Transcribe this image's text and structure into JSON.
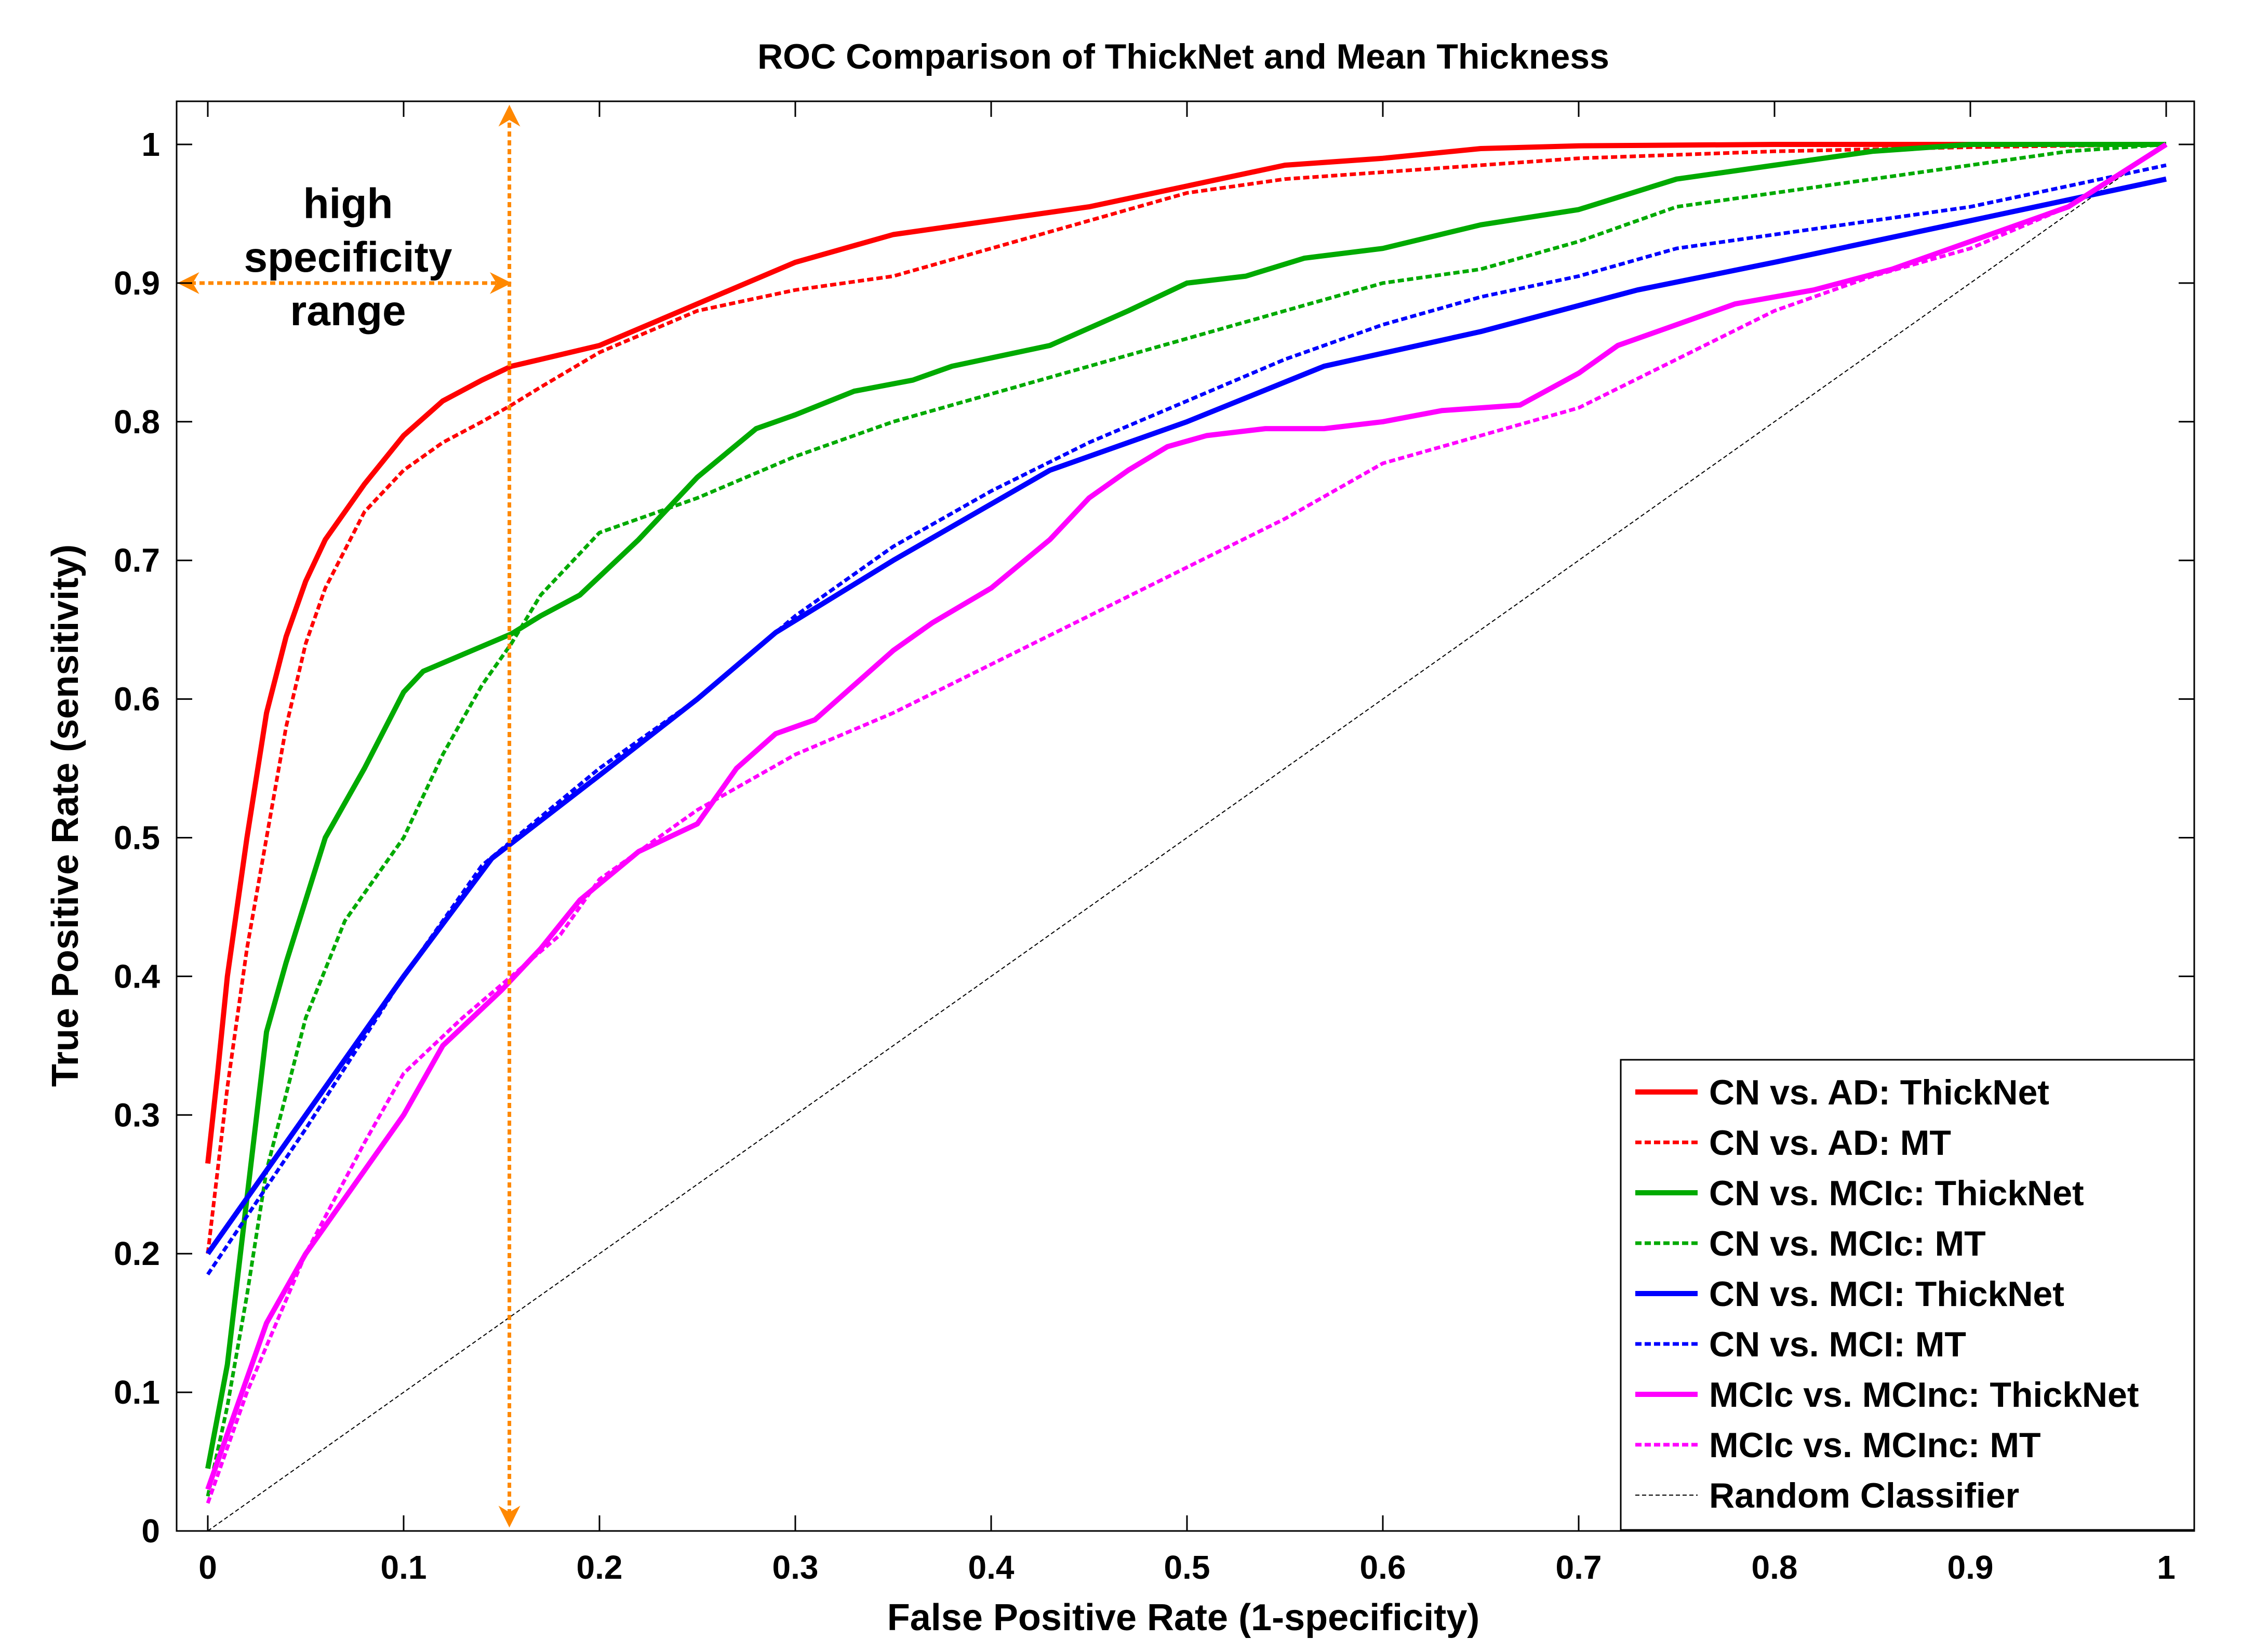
{
  "chart_data": {
    "type": "line",
    "title": "ROC Comparison of ThickNet and Mean Thickness",
    "xlabel": "False Positive Rate (1-specificity)",
    "ylabel": "True Positive Rate (sensitivity)",
    "xlim": [
      0,
      1
    ],
    "ylim": [
      0,
      1
    ],
    "xticks": [
      "0",
      "0.1",
      "0.2",
      "0.3",
      "0.4",
      "0.5",
      "0.6",
      "0.7",
      "0.8",
      "0.9",
      "1"
    ],
    "yticks": [
      "0",
      "0.1",
      "0.2",
      "0.3",
      "0.4",
      "0.5",
      "0.6",
      "0.7",
      "0.8",
      "0.9",
      "1"
    ],
    "grid": false,
    "legend_position": "bottom-right",
    "annotation": {
      "lines": [
        "high",
        "specificity",
        "range"
      ],
      "x_value": 0.154,
      "y_value": 0.9,
      "color": "#ff8800"
    },
    "series": [
      {
        "name": "CN vs. AD: ThickNet",
        "color": "#ff0000",
        "style": "solid",
        "x": [
          0,
          0.005,
          0.01,
          0.02,
          0.03,
          0.04,
          0.05,
          0.06,
          0.08,
          0.1,
          0.12,
          0.14,
          0.155,
          0.17,
          0.2,
          0.25,
          0.3,
          0.35,
          0.4,
          0.45,
          0.5,
          0.55,
          0.6,
          0.65,
          0.7,
          0.8,
          0.9,
          1.0
        ],
        "y": [
          0.265,
          0.33,
          0.4,
          0.5,
          0.59,
          0.645,
          0.685,
          0.715,
          0.755,
          0.79,
          0.815,
          0.83,
          0.84,
          0.845,
          0.855,
          0.885,
          0.915,
          0.935,
          0.945,
          0.955,
          0.97,
          0.985,
          0.99,
          0.997,
          0.999,
          1.0,
          1.0,
          1.0
        ]
      },
      {
        "name": "CN vs. AD: MT",
        "color": "#ff0000",
        "style": "dashed",
        "x": [
          0,
          0.005,
          0.01,
          0.02,
          0.03,
          0.04,
          0.05,
          0.06,
          0.08,
          0.1,
          0.12,
          0.14,
          0.155,
          0.17,
          0.2,
          0.25,
          0.3,
          0.35,
          0.4,
          0.45,
          0.5,
          0.55,
          0.6,
          0.65,
          0.7,
          0.8,
          0.9,
          1.0
        ],
        "y": [
          0.2,
          0.26,
          0.32,
          0.42,
          0.5,
          0.58,
          0.64,
          0.68,
          0.735,
          0.765,
          0.785,
          0.8,
          0.812,
          0.825,
          0.85,
          0.88,
          0.895,
          0.905,
          0.925,
          0.945,
          0.965,
          0.975,
          0.98,
          0.985,
          0.99,
          0.995,
          0.998,
          1.0
        ]
      },
      {
        "name": "CN vs. MCIc: ThickNet",
        "color": "#00aa00",
        "style": "solid",
        "x": [
          0,
          0.01,
          0.02,
          0.03,
          0.04,
          0.06,
          0.08,
          0.1,
          0.11,
          0.13,
          0.155,
          0.17,
          0.19,
          0.22,
          0.25,
          0.28,
          0.3,
          0.33,
          0.36,
          0.38,
          0.43,
          0.47,
          0.5,
          0.53,
          0.56,
          0.6,
          0.65,
          0.7,
          0.75,
          0.8,
          0.85,
          0.9,
          1.0
        ],
        "y": [
          0.045,
          0.12,
          0.24,
          0.36,
          0.41,
          0.5,
          0.55,
          0.605,
          0.62,
          0.632,
          0.647,
          0.66,
          0.675,
          0.715,
          0.76,
          0.795,
          0.805,
          0.822,
          0.83,
          0.84,
          0.855,
          0.88,
          0.9,
          0.905,
          0.918,
          0.925,
          0.942,
          0.953,
          0.975,
          0.985,
          0.995,
          1.0,
          1.0
        ]
      },
      {
        "name": "CN vs. MCIc: MT",
        "color": "#00aa00",
        "style": "dashed",
        "x": [
          0,
          0.01,
          0.02,
          0.03,
          0.05,
          0.07,
          0.1,
          0.12,
          0.14,
          0.155,
          0.17,
          0.2,
          0.25,
          0.3,
          0.35,
          0.4,
          0.45,
          0.5,
          0.55,
          0.6,
          0.65,
          0.7,
          0.75,
          0.8,
          0.85,
          0.9,
          0.95,
          1.0
        ],
        "y": [
          0.025,
          0.09,
          0.17,
          0.26,
          0.37,
          0.44,
          0.5,
          0.56,
          0.61,
          0.64,
          0.675,
          0.72,
          0.745,
          0.775,
          0.8,
          0.82,
          0.84,
          0.86,
          0.88,
          0.9,
          0.91,
          0.93,
          0.955,
          0.965,
          0.975,
          0.985,
          0.995,
          1.0
        ]
      },
      {
        "name": "CN vs. MCI: ThickNet",
        "color": "#0000ff",
        "style": "solid",
        "x": [
          0,
          0.05,
          0.1,
          0.145,
          0.2,
          0.25,
          0.29,
          0.35,
          0.43,
          0.5,
          0.57,
          0.65,
          0.73,
          0.8,
          0.9,
          1.0
        ],
        "y": [
          0.2,
          0.3,
          0.4,
          0.485,
          0.545,
          0.6,
          0.648,
          0.7,
          0.765,
          0.8,
          0.84,
          0.865,
          0.895,
          0.915,
          0.945,
          0.975
        ]
      },
      {
        "name": "CN vs. MCI: MT",
        "color": "#0000ff",
        "style": "dashed",
        "x": [
          0,
          0.05,
          0.1,
          0.14,
          0.2,
          0.25,
          0.3,
          0.35,
          0.4,
          0.45,
          0.5,
          0.55,
          0.6,
          0.65,
          0.7,
          0.75,
          0.8,
          0.85,
          0.9,
          0.95,
          1.0
        ],
        "y": [
          0.185,
          0.29,
          0.4,
          0.48,
          0.55,
          0.6,
          0.66,
          0.71,
          0.75,
          0.785,
          0.815,
          0.845,
          0.87,
          0.89,
          0.905,
          0.925,
          0.935,
          0.945,
          0.955,
          0.97,
          0.985
        ]
      },
      {
        "name": "MCIc vs. MCInc: ThickNet",
        "color": "#ff00ff",
        "style": "solid",
        "x": [
          0,
          0.01,
          0.02,
          0.03,
          0.05,
          0.07,
          0.1,
          0.12,
          0.15,
          0.17,
          0.19,
          0.22,
          0.25,
          0.27,
          0.29,
          0.31,
          0.33,
          0.35,
          0.37,
          0.4,
          0.43,
          0.45,
          0.47,
          0.49,
          0.51,
          0.54,
          0.57,
          0.6,
          0.63,
          0.67,
          0.7,
          0.72,
          0.74,
          0.78,
          0.82,
          0.86,
          0.9,
          0.95,
          1.0
        ],
        "y": [
          0.03,
          0.07,
          0.11,
          0.15,
          0.2,
          0.24,
          0.3,
          0.35,
          0.39,
          0.42,
          0.455,
          0.49,
          0.51,
          0.55,
          0.575,
          0.585,
          0.61,
          0.635,
          0.655,
          0.68,
          0.715,
          0.745,
          0.765,
          0.782,
          0.79,
          0.795,
          0.795,
          0.8,
          0.808,
          0.812,
          0.835,
          0.855,
          0.865,
          0.885,
          0.895,
          0.91,
          0.93,
          0.955,
          1.0
        ]
      },
      {
        "name": "MCIc vs. MCInc: MT",
        "color": "#ff00ff",
        "style": "dashed",
        "x": [
          0,
          0.02,
          0.05,
          0.08,
          0.1,
          0.13,
          0.155,
          0.18,
          0.2,
          0.25,
          0.3,
          0.35,
          0.4,
          0.45,
          0.5,
          0.55,
          0.6,
          0.65,
          0.7,
          0.75,
          0.8,
          0.85,
          0.9,
          0.95,
          1.0
        ],
        "y": [
          0.02,
          0.1,
          0.2,
          0.28,
          0.33,
          0.37,
          0.4,
          0.43,
          0.47,
          0.52,
          0.56,
          0.59,
          0.625,
          0.66,
          0.695,
          0.73,
          0.77,
          0.79,
          0.81,
          0.845,
          0.88,
          0.905,
          0.925,
          0.955,
          1.0
        ]
      },
      {
        "name": "Random Classifier",
        "color": "#000000",
        "style": "thin-dashed",
        "x": [
          0,
          1
        ],
        "y": [
          0,
          1
        ]
      }
    ]
  }
}
